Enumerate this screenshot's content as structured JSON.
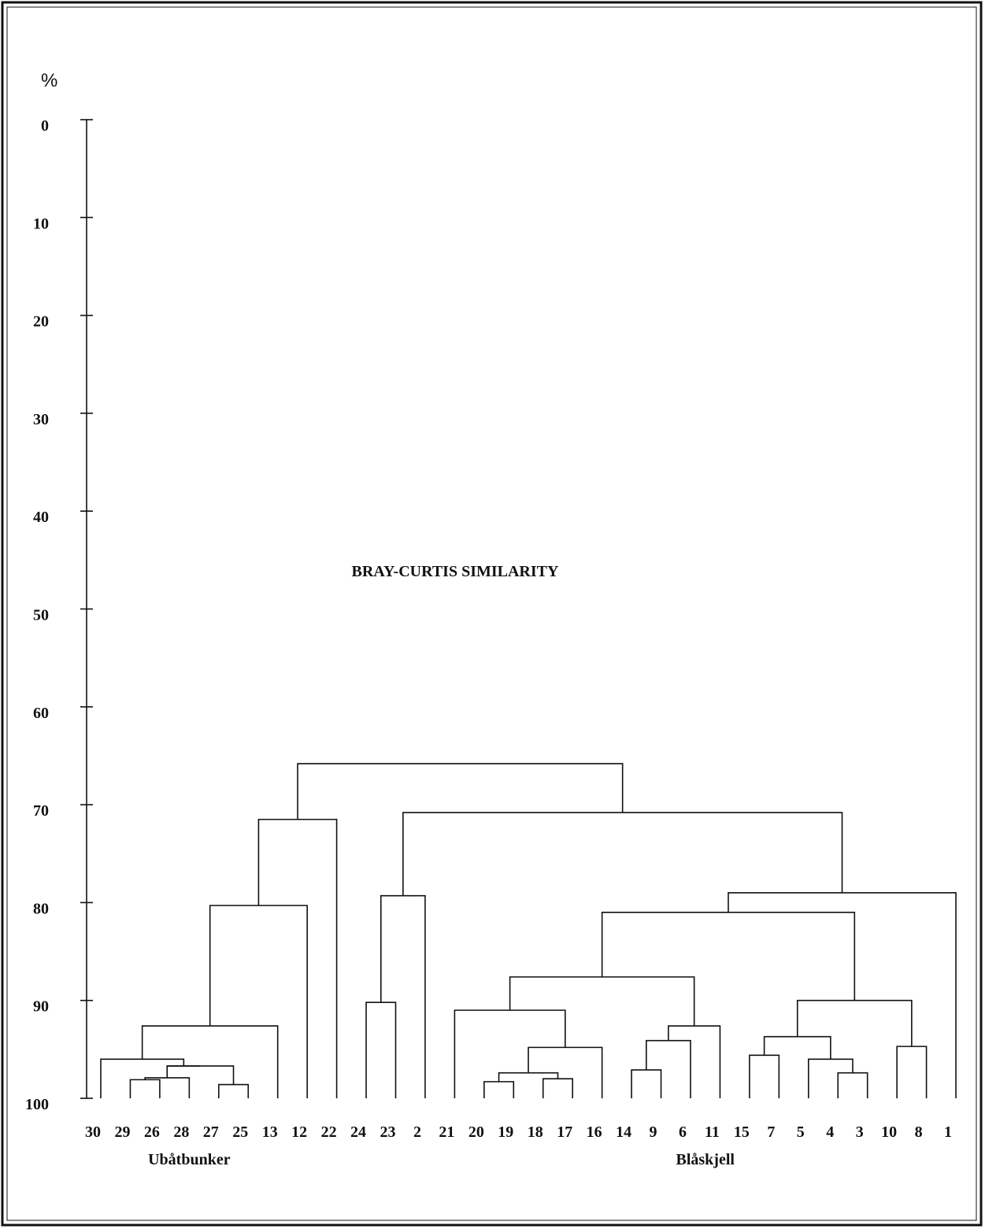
{
  "chart_data": {
    "type": "dendrogram",
    "title": "BRAY-CURTIS SIMILARITY",
    "yunit": "%",
    "ylim": [
      0,
      100
    ],
    "yticks": [
      0,
      10,
      20,
      30,
      40,
      50,
      60,
      70,
      80,
      90,
      100
    ],
    "leaves": [
      "30",
      "29",
      "26",
      "28",
      "27",
      "25",
      "13",
      "12",
      "22",
      "24",
      "23",
      "2",
      "21",
      "20",
      "19",
      "18",
      "17",
      "16",
      "14",
      "9",
      "6",
      "11",
      "15",
      "7",
      "5",
      "4",
      "3",
      "10",
      "8",
      "1"
    ],
    "groups": [
      {
        "label": "Ubåtbunker",
        "leaves": [
          "30",
          "29",
          "26",
          "28",
          "27",
          "25",
          "13"
        ]
      },
      {
        "label": "Blåskjell",
        "leaves": [
          "21",
          "20",
          "19",
          "18",
          "17",
          "16",
          "14",
          "9",
          "6",
          "11",
          "15",
          "7",
          "5",
          "4",
          "3",
          "10",
          "8",
          "1"
        ]
      }
    ],
    "merges": [
      {
        "a": "29",
        "b": "26",
        "similarity": 98.1
      },
      {
        "a": "27",
        "b": "25",
        "similarity": 98.6
      },
      {
        "a": "29+26",
        "b": "28",
        "similarity": 97.9
      },
      {
        "a": "28+27",
        "b": "25",
        "similarity": 96.7
      },
      {
        "a": "30",
        "b": "29…25",
        "similarity": 96.0
      },
      {
        "a": "30…25",
        "b": "13",
        "similarity": 92.6
      },
      {
        "a": "30…13",
        "b": "12",
        "similarity": 80.3
      },
      {
        "a": "30…12",
        "b": "22",
        "similarity": 71.5
      },
      {
        "a": "24",
        "b": "23",
        "similarity": 90.2
      },
      {
        "a": "24+23",
        "b": "2",
        "similarity": 79.3
      },
      {
        "a": "20",
        "b": "19",
        "similarity": 98.3
      },
      {
        "a": "18",
        "b": "17",
        "similarity": 98.0
      },
      {
        "a": "20+19",
        "b": "18+17",
        "similarity": 97.4
      },
      {
        "a": "20…17",
        "b": "16",
        "similarity": 94.8
      },
      {
        "a": "21",
        "b": "20…16",
        "similarity": 91.0
      },
      {
        "a": "14",
        "b": "9",
        "similarity": 97.1
      },
      {
        "a": "14+9",
        "b": "6",
        "similarity": 94.1
      },
      {
        "a": "14…6",
        "b": "11",
        "similarity": 92.6
      },
      {
        "a": "21…16",
        "b": "14…11",
        "similarity": 87.6
      },
      {
        "a": "4",
        "b": "3",
        "similarity": 97.4
      },
      {
        "a": "5",
        "b": "4+3",
        "similarity": 96.0
      },
      {
        "a": "15",
        "b": "7",
        "similarity": 95.6
      },
      {
        "a": "15+7",
        "b": "5…3",
        "similarity": 93.7
      },
      {
        "a": "10",
        "b": "8",
        "similarity": 94.7
      },
      {
        "a": "15…3",
        "b": "10+8",
        "similarity": 90.0
      },
      {
        "a": "21…11",
        "b": "15…8",
        "similarity": 81.0
      },
      {
        "a": "21…8",
        "b": "1",
        "similarity": 79.0
      },
      {
        "a": "2-cluster",
        "b": "21…1",
        "similarity": 70.8
      },
      {
        "a": "30…22",
        "b": "24…1",
        "similarity": 65.8
      }
    ]
  }
}
